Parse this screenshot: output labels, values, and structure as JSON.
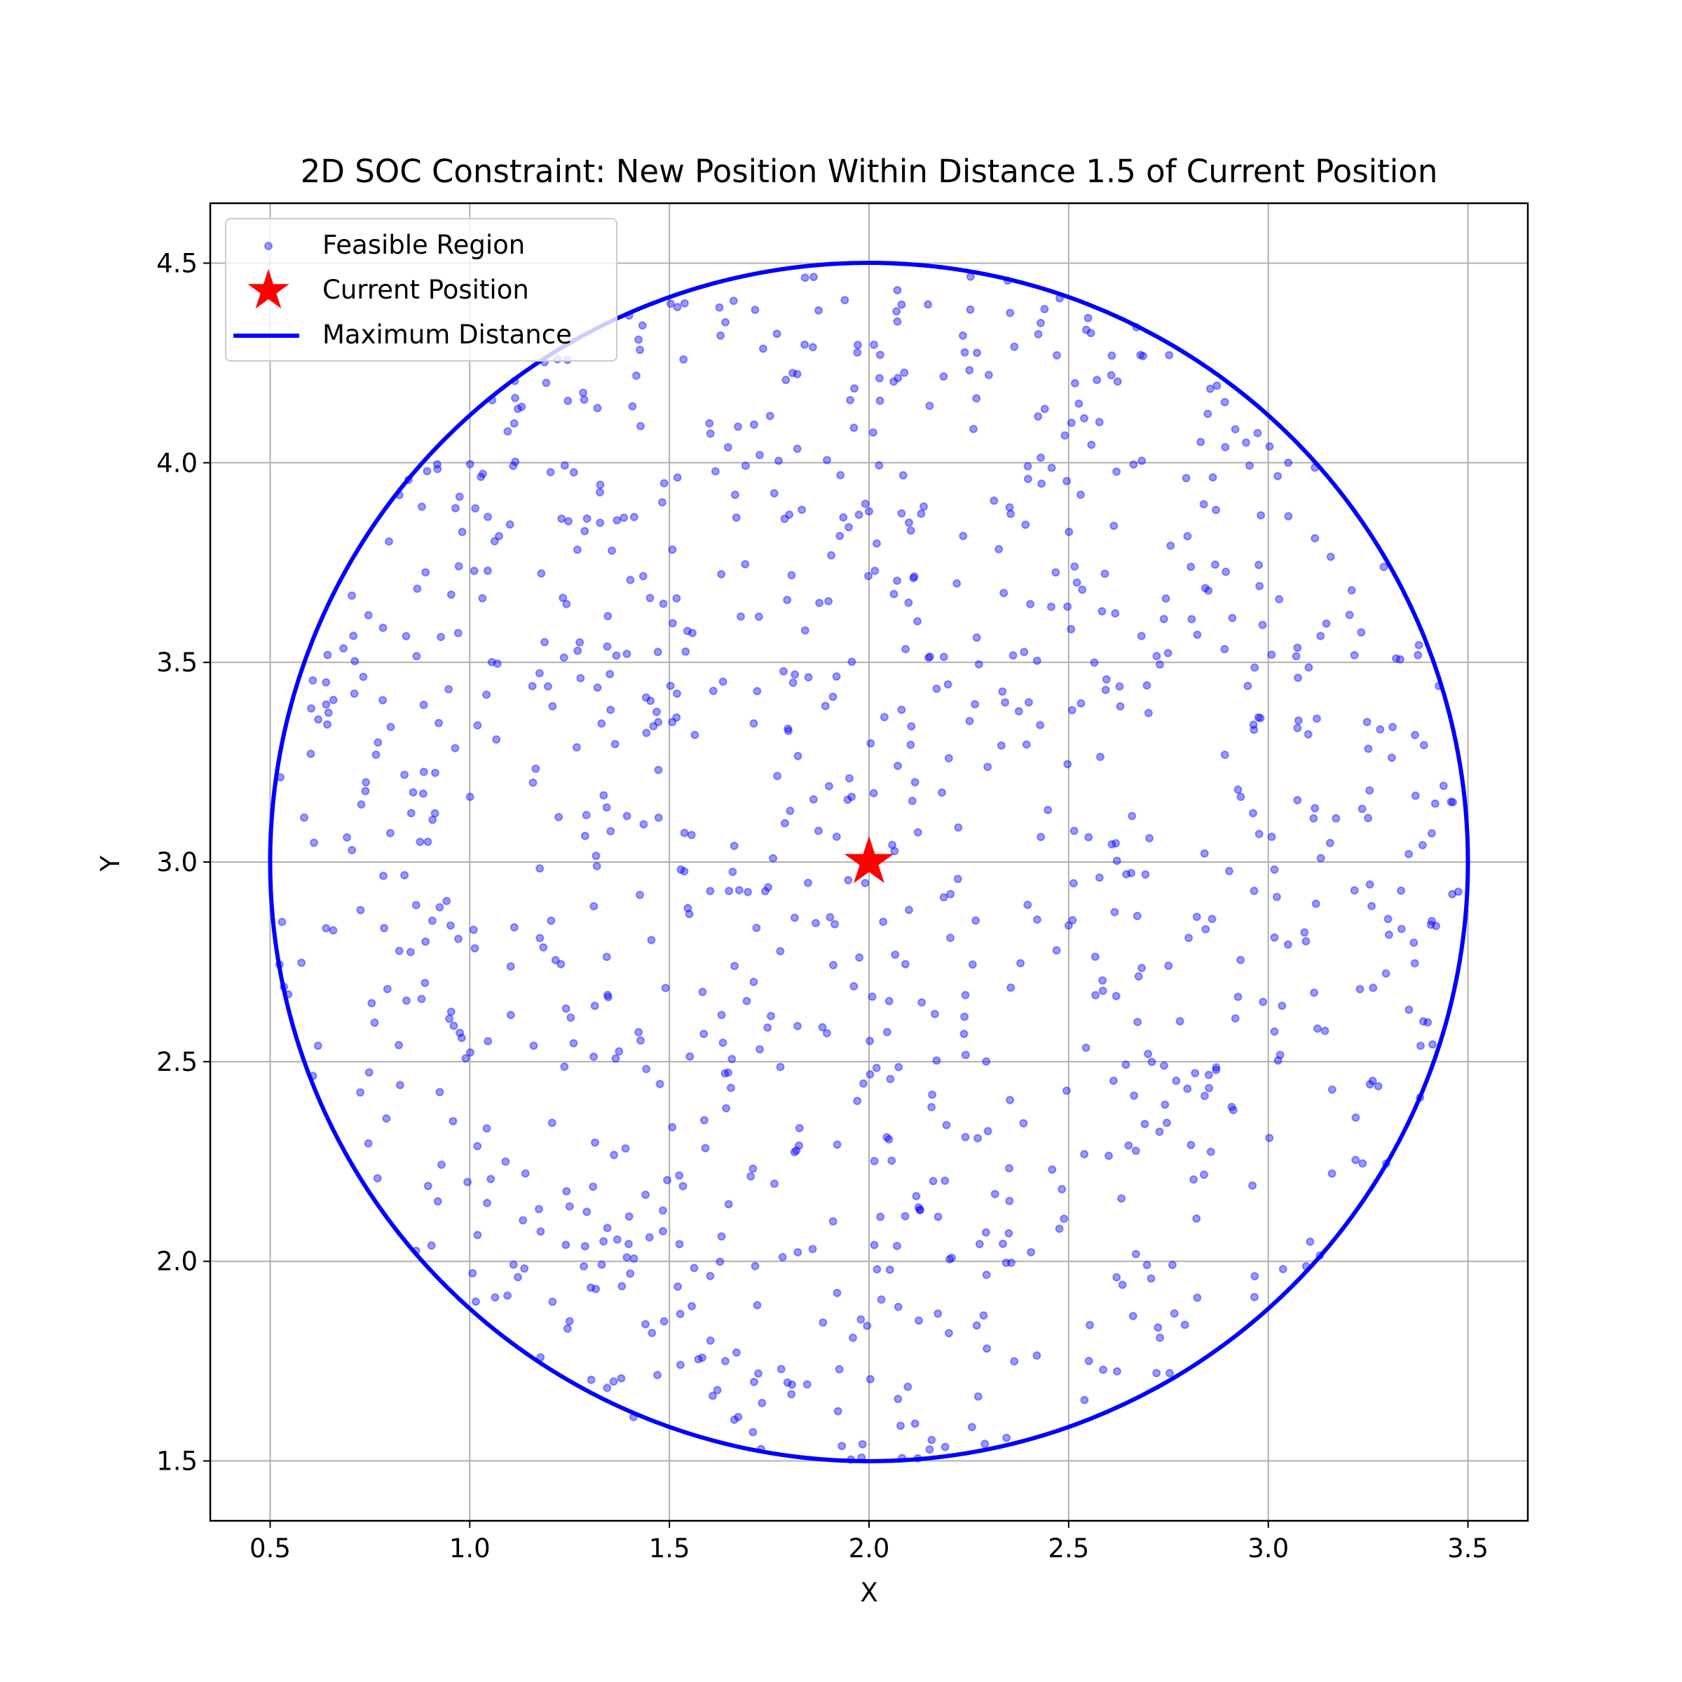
{
  "chart_data": {
    "type": "scatter",
    "title": "2D SOC Constraint: New Position Within Distance 1.5 of Current Position",
    "xlabel": "X",
    "ylabel": "Y",
    "xlim": [
      0.35,
      3.65
    ],
    "ylim": [
      1.35,
      4.65
    ],
    "xticks": [
      0.5,
      1.0,
      1.5,
      2.0,
      2.5,
      3.0,
      3.5
    ],
    "yticks": [
      1.5,
      2.0,
      2.5,
      3.0,
      3.5,
      4.0,
      4.5
    ],
    "xtick_labels": [
      "0.5",
      "1.0",
      "1.5",
      "2.0",
      "2.5",
      "3.0",
      "3.5"
    ],
    "ytick_labels": [
      "1.5",
      "2.0",
      "2.5",
      "3.0",
      "3.5",
      "4.0",
      "4.5"
    ],
    "grid": true,
    "legend_position": "top-left",
    "series": [
      {
        "name": "Feasible Region",
        "kind": "scatter",
        "color": "#0000ff",
        "alpha": 0.4,
        "count": 1000,
        "distribution": "uniform within circle",
        "points": [
          [
            2.1,
            3.85
          ],
          [
            1.8,
            3.87
          ],
          [
            2.53,
            3.92
          ],
          [
            2.85,
            3.68
          ],
          [
            1.46,
            3.34
          ],
          [
            3.1,
            3.32
          ],
          [
            3.25,
            3.11
          ],
          [
            2.75,
            2.74
          ],
          [
            1.9,
            3.19
          ],
          [
            1.55,
            2.87
          ],
          [
            1.16,
            2.54
          ],
          [
            0.96,
            2.59
          ],
          [
            1.45,
            2.06
          ],
          [
            1.91,
            2.1
          ],
          [
            2.35,
            2.07
          ],
          [
            2.65,
            2.29
          ],
          [
            3.16,
            2.43
          ],
          [
            2.72,
            1.72
          ],
          [
            2.2,
            1.82
          ],
          [
            1.78,
            1.73
          ],
          [
            1.25,
            1.85
          ],
          [
            0.92,
            2.15
          ],
          [
            1.72,
            1.89
          ],
          [
            2.3,
            4.22
          ],
          [
            1.52,
            4.39
          ],
          [
            2.43,
            4.35
          ],
          [
            1.13,
            4.14
          ],
          [
            0.88,
            3.89
          ],
          [
            0.64,
            3.45
          ],
          [
            3.32,
            3.51
          ],
          [
            3.42,
            2.84
          ],
          [
            0.53,
            2.85
          ],
          [
            0.62,
            2.54
          ],
          [
            3.38,
            2.41
          ],
          [
            2.02,
            1.98
          ],
          [
            1.41,
            1.61
          ],
          [
            2.62,
            1.96
          ],
          [
            1.64,
            1.75
          ],
          [
            2.1,
            2.88
          ],
          [
            2.4,
            3.4
          ],
          [
            1.84,
            3.58
          ],
          [
            2.2,
            3.26
          ],
          [
            1.23,
            3.86
          ],
          [
            2.68,
            4.27
          ],
          [
            3.05,
            4.0
          ]
        ]
      },
      {
        "name": "Current Position",
        "kind": "marker",
        "marker": "star",
        "color": "#ff0000",
        "x": 2.0,
        "y": 3.0
      },
      {
        "name": "Maximum Distance",
        "kind": "circle",
        "color": "#0000ff",
        "center": [
          2.0,
          3.0
        ],
        "radius": 1.5
      }
    ]
  }
}
